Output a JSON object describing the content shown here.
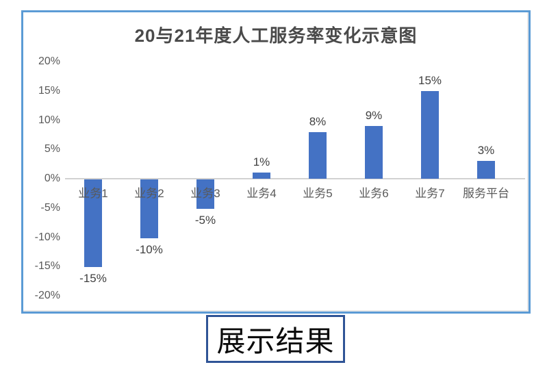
{
  "colors": {
    "bar": "#4472C4",
    "frame_border": "#5B9BD5",
    "axis_line": "#D2D2D2",
    "title_text": "#4A4A4A",
    "axis_text": "#595959",
    "label_text": "#404040",
    "result_box_border": "#2F5496",
    "result_box_text": "#0A0A0A"
  },
  "chart_data": {
    "type": "bar",
    "title": "20与21年度人工服务率变化示意图",
    "categories": [
      "业务1",
      "业务2",
      "业务3",
      "业务4",
      "业务5",
      "业务6",
      "业务7",
      "服务平台"
    ],
    "values": [
      -15,
      -10,
      -5,
      1,
      8,
      9,
      15,
      3
    ],
    "data_labels": [
      "-15%",
      "-10%",
      "-5%",
      "1%",
      "8%",
      "9%",
      "15%",
      "3%"
    ],
    "xlabel": "",
    "ylabel": "",
    "ylim": [
      -20,
      20
    ],
    "ytick_step": 5,
    "ytick_values": [
      20,
      15,
      10,
      5,
      0,
      -5,
      -10,
      -15,
      -20
    ],
    "ytick_labels": [
      "20%",
      "15%",
      "10%",
      "5%",
      "0%",
      "-5%",
      "-10%",
      "-15%",
      "-20%"
    ],
    "grid": false,
    "legend": "none",
    "bar_color": "#4472C4"
  },
  "result_box": {
    "label": "展示结果"
  }
}
